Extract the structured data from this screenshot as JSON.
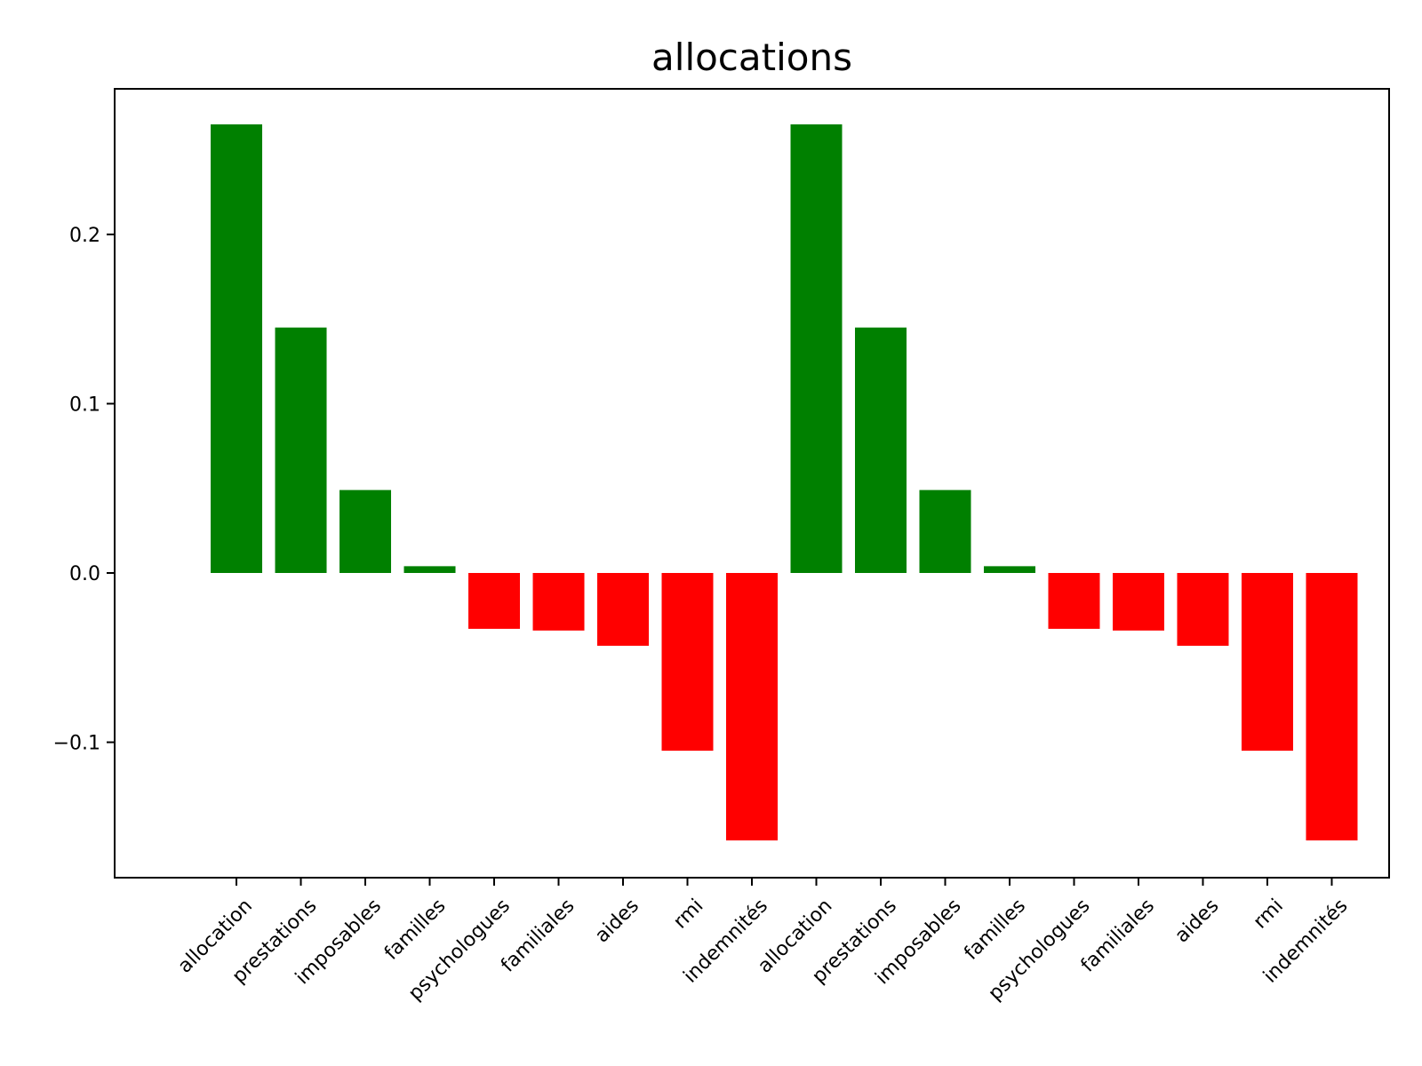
{
  "chart_data": {
    "type": "bar",
    "title": "allocations",
    "xlabel": "",
    "ylabel": "",
    "categories": [
      "allocation",
      "prestations",
      "imposables",
      "familles",
      "psychologues",
      "familiales",
      "aides",
      "rmi",
      "indemnités",
      "allocation",
      "prestations",
      "imposables",
      "familles",
      "psychologues",
      "familiales",
      "aides",
      "rmi",
      "indemnités"
    ],
    "values": [
      0.265,
      0.145,
      0.049,
      0.004,
      -0.033,
      -0.034,
      -0.043,
      -0.105,
      -0.158,
      0.265,
      0.145,
      0.049,
      0.004,
      -0.033,
      -0.034,
      -0.043,
      -0.105,
      -0.158
    ],
    "yticks": [
      -0.1,
      0.0,
      0.1,
      0.2
    ],
    "ytick_labels": [
      "−0.1",
      "0.0",
      "0.1",
      "0.2"
    ],
    "ylim": [
      -0.18,
      0.286
    ],
    "grid": false,
    "legend": "none",
    "colors": {
      "positive": "#008000",
      "negative": "#ff0000"
    }
  }
}
